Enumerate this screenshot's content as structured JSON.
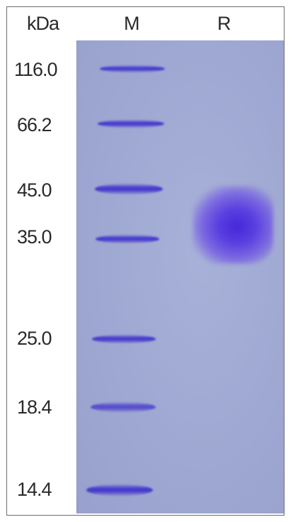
{
  "headers": {
    "unit": "kDa",
    "lane_m": "M",
    "lane_r": "R"
  },
  "markers": [
    "116.0",
    "66.2",
    "45.0",
    "35.0",
    "25.0",
    "18.4",
    "14.4"
  ],
  "colors": {
    "gel": "#a1aad4",
    "band": "#4335cc",
    "text": "#2a2a2a"
  }
}
